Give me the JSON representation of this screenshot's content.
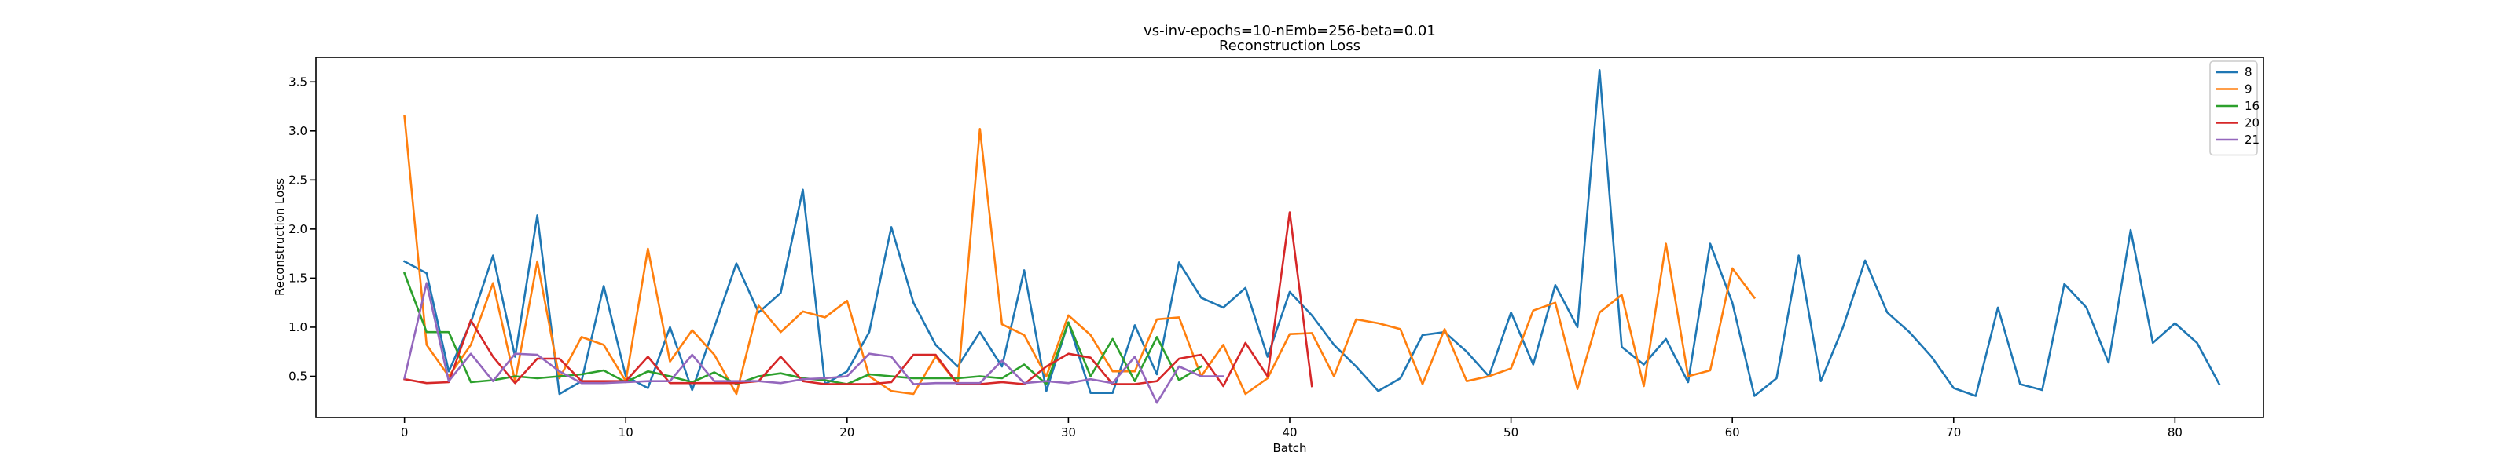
{
  "chart_data": {
    "type": "line",
    "title": "vs-inv-epochs=10-nEmb=256-beta=0.01",
    "subtitle": "Reconstruction Loss",
    "xlabel": "Batch",
    "ylabel": "Reconstruction Loss",
    "xlim": [
      -4,
      84
    ],
    "ylim": [
      0.08,
      3.75
    ],
    "xticks": [
      0,
      10,
      20,
      30,
      40,
      50,
      60,
      70,
      80
    ],
    "yticks": [
      0.5,
      1.0,
      1.5,
      2.0,
      2.5,
      3.0,
      3.5
    ],
    "xtick_labels": [
      "0",
      "10",
      "20",
      "30",
      "40",
      "50",
      "60",
      "70",
      "80"
    ],
    "ytick_labels": [
      "0.5",
      "1.0",
      "1.5",
      "2.0",
      "2.5",
      "3.0",
      "3.5"
    ],
    "grid": false,
    "legend_position": "top-right",
    "series": [
      {
        "name": "8",
        "color": "#1f77b4",
        "values": [
          1.67,
          1.55,
          0.55,
          1.05,
          1.73,
          0.7,
          2.14,
          0.32,
          0.45,
          1.42,
          0.5,
          0.38,
          1.0,
          0.36,
          1.0,
          1.65,
          1.15,
          1.35,
          2.4,
          0.42,
          0.55,
          0.95,
          2.02,
          1.25,
          0.82,
          0.6,
          0.95,
          0.6,
          1.58,
          0.35,
          1.05,
          0.33,
          0.33,
          1.02,
          0.52,
          1.66,
          1.3,
          1.2,
          1.4,
          0.7,
          1.36,
          1.12,
          0.82,
          0.6,
          0.35,
          0.48,
          0.92,
          0.95,
          0.75,
          0.5,
          1.15,
          0.62,
          1.43,
          1.0,
          3.62,
          0.8,
          0.62,
          0.88,
          0.44,
          1.85,
          1.25,
          0.3,
          0.48,
          1.73,
          0.45,
          1.0,
          1.68,
          1.15,
          0.95,
          0.7,
          0.38,
          0.3,
          1.2,
          0.42,
          0.36,
          1.44,
          1.2,
          0.64,
          1.99,
          0.84,
          1.04,
          0.84,
          0.42
        ]
      },
      {
        "name": "9",
        "color": "#ff7f0e",
        "values": [
          3.15,
          0.82,
          0.5,
          0.82,
          1.45,
          0.45,
          1.67,
          0.48,
          0.9,
          0.82,
          0.45,
          1.8,
          0.65,
          0.97,
          0.72,
          0.32,
          1.22,
          0.95,
          1.16,
          1.1,
          1.27,
          0.5,
          0.35,
          0.32,
          0.7,
          0.42,
          3.02,
          1.03,
          0.92,
          0.5,
          1.12,
          0.92,
          0.55,
          0.55,
          1.08,
          1.1,
          0.5,
          0.82,
          0.32,
          0.48,
          0.93,
          0.94,
          0.5,
          1.08,
          1.04,
          0.98,
          0.42,
          0.98,
          0.45,
          0.5,
          0.58,
          1.17,
          1.25,
          0.37,
          1.15,
          1.33,
          0.4,
          1.85,
          0.5,
          0.56,
          1.6,
          1.3
        ]
      },
      {
        "name": "16",
        "color": "#2ca02c",
        "values": [
          1.55,
          0.95,
          0.95,
          0.44,
          0.46,
          0.5,
          0.48,
          0.5,
          0.52,
          0.56,
          0.44,
          0.55,
          0.5,
          0.44,
          0.54,
          0.42,
          0.5,
          0.53,
          0.48,
          0.46,
          0.42,
          0.52,
          0.5,
          0.48,
          0.48,
          0.48,
          0.5,
          0.48,
          0.62,
          0.42,
          1.05,
          0.5,
          0.88,
          0.45,
          0.9,
          0.46,
          0.6
        ]
      },
      {
        "name": "20",
        "color": "#d62728",
        "values": [
          0.47,
          0.43,
          0.44,
          1.07,
          0.7,
          0.43,
          0.68,
          0.68,
          0.45,
          0.45,
          0.45,
          0.7,
          0.43,
          0.43,
          0.43,
          0.43,
          0.45,
          0.7,
          0.45,
          0.42,
          0.42,
          0.42,
          0.44,
          0.72,
          0.72,
          0.42,
          0.42,
          0.44,
          0.42,
          0.6,
          0.73,
          0.69,
          0.42,
          0.42,
          0.45,
          0.68,
          0.72,
          0.4,
          0.84,
          0.5,
          2.17,
          0.4
        ]
      },
      {
        "name": "21",
        "color": "#9467bd",
        "values": [
          0.48,
          1.45,
          0.45,
          0.73,
          0.45,
          0.73,
          0.72,
          0.55,
          0.43,
          0.43,
          0.44,
          0.45,
          0.45,
          0.72,
          0.45,
          0.45,
          0.45,
          0.43,
          0.47,
          0.48,
          0.5,
          0.73,
          0.7,
          0.42,
          0.43,
          0.43,
          0.43,
          0.66,
          0.43,
          0.45,
          0.43,
          0.47,
          0.43,
          0.7,
          0.23,
          0.6,
          0.5,
          0.5
        ]
      }
    ]
  }
}
